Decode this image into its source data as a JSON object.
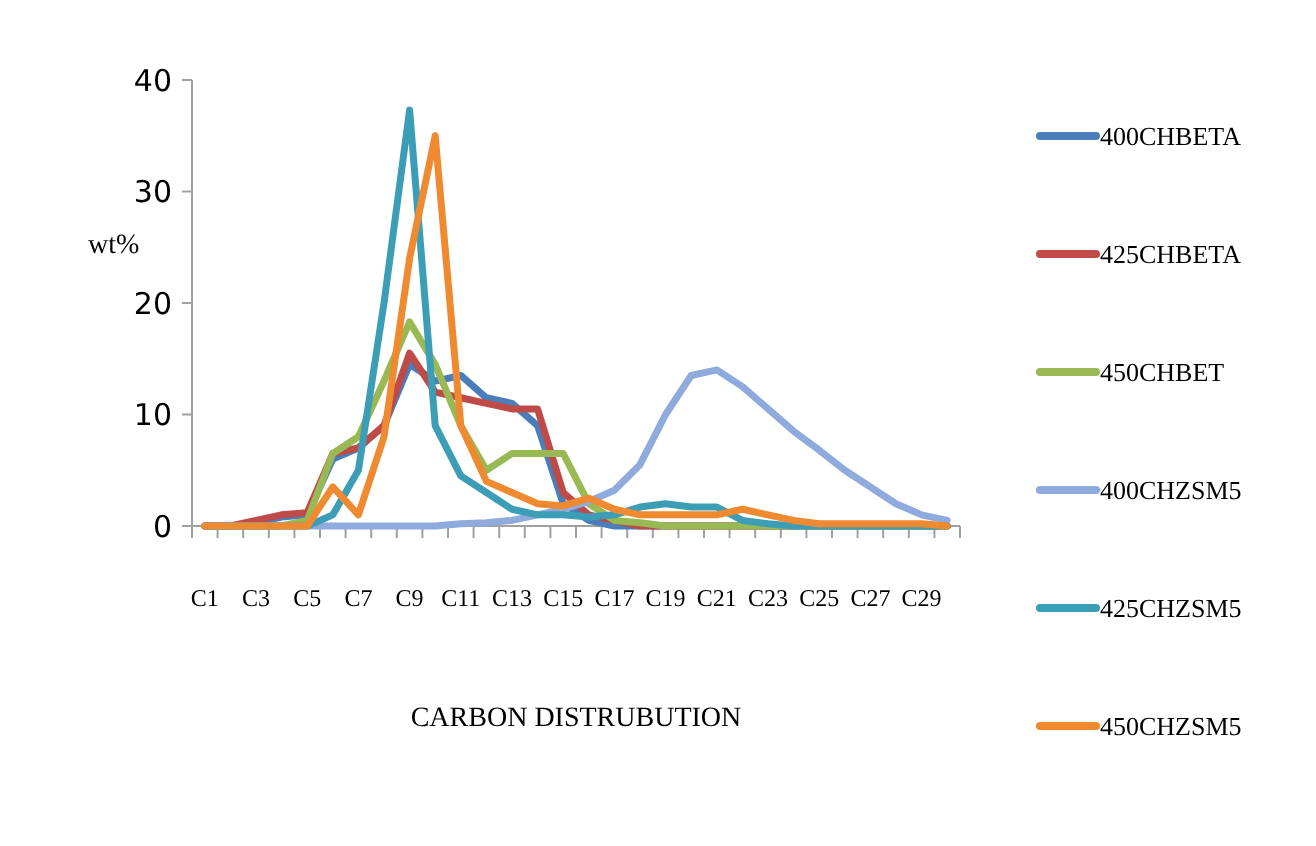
{
  "chart_data": {
    "type": "line",
    "xlabel": "CARBON DISTRUBUTION",
    "ylabel": "wt%",
    "categories": [
      "C1",
      null,
      "C3",
      null,
      "C5",
      null,
      "C7",
      null,
      "C9",
      null,
      "C11",
      null,
      "C13",
      null,
      "C15",
      null,
      "C17",
      null,
      "C19",
      null,
      "C21",
      null,
      "C23",
      null,
      "C25",
      null,
      "C27",
      null,
      "C29",
      null
    ],
    "ylim": [
      0,
      40
    ],
    "yticks": [
      0,
      10,
      20,
      30,
      40
    ],
    "grid": false,
    "legend": "right",
    "marker": "none",
    "line_style": "solid",
    "series": [
      {
        "name": "400CHBETA",
        "color": "#4a7ebb",
        "values": [
          0,
          0,
          0.3,
          0.8,
          1,
          6,
          7,
          9,
          14.5,
          13,
          13.5,
          11.5,
          11,
          9,
          2,
          0.5,
          0,
          0,
          0,
          0,
          0,
          0,
          0,
          0,
          0,
          0,
          0,
          0,
          0,
          0
        ]
      },
      {
        "name": "425CHBETA",
        "color": "#be4b48",
        "values": [
          0,
          0,
          0.5,
          1,
          1.2,
          6.5,
          7,
          9,
          15.5,
          12,
          11.5,
          11,
          10.5,
          10.5,
          3,
          1,
          0.5,
          0,
          0,
          0,
          0,
          0,
          0,
          0,
          0,
          0,
          0,
          0,
          0,
          0
        ]
      },
      {
        "name": "450CHBET",
        "color": "#98b954",
        "values": [
          0,
          0,
          0,
          0,
          0.5,
          6.5,
          8,
          13,
          18.3,
          14.5,
          9,
          5,
          6.5,
          6.5,
          6.5,
          2,
          0.5,
          0.3,
          0,
          0,
          0,
          0,
          0,
          0,
          0,
          0,
          0,
          0,
          0,
          0
        ]
      },
      {
        "name": "400CHZSM5",
        "color": "#8faadc",
        "values": [
          0,
          0,
          0,
          0,
          0,
          0,
          0,
          0,
          0,
          0,
          0.2,
          0.3,
          0.5,
          1,
          1.5,
          2.2,
          3.2,
          5.5,
          10,
          13.5,
          14,
          12.5,
          10.5,
          8.5,
          6.8,
          5,
          3.5,
          2,
          1,
          0.5
        ]
      },
      {
        "name": "425CHZSM5",
        "color": "#3c9eb6",
        "values": [
          0,
          0,
          0,
          0,
          0,
          1,
          5,
          20,
          37.3,
          9,
          4.5,
          3,
          1.5,
          1,
          1,
          0.8,
          1,
          1.7,
          2,
          1.7,
          1.7,
          0.5,
          0.2,
          0,
          0,
          0,
          0,
          0,
          0,
          0
        ]
      },
      {
        "name": "450CHZSM5",
        "color": "#f08a30",
        "values": [
          0,
          0,
          0,
          0,
          0,
          3.5,
          1,
          8,
          24,
          35,
          9,
          4,
          3,
          2,
          1.8,
          2.5,
          1.5,
          1,
          1,
          1,
          1,
          1.5,
          1,
          0.5,
          0.2,
          0.2,
          0.2,
          0.2,
          0.2,
          0
        ]
      }
    ]
  }
}
